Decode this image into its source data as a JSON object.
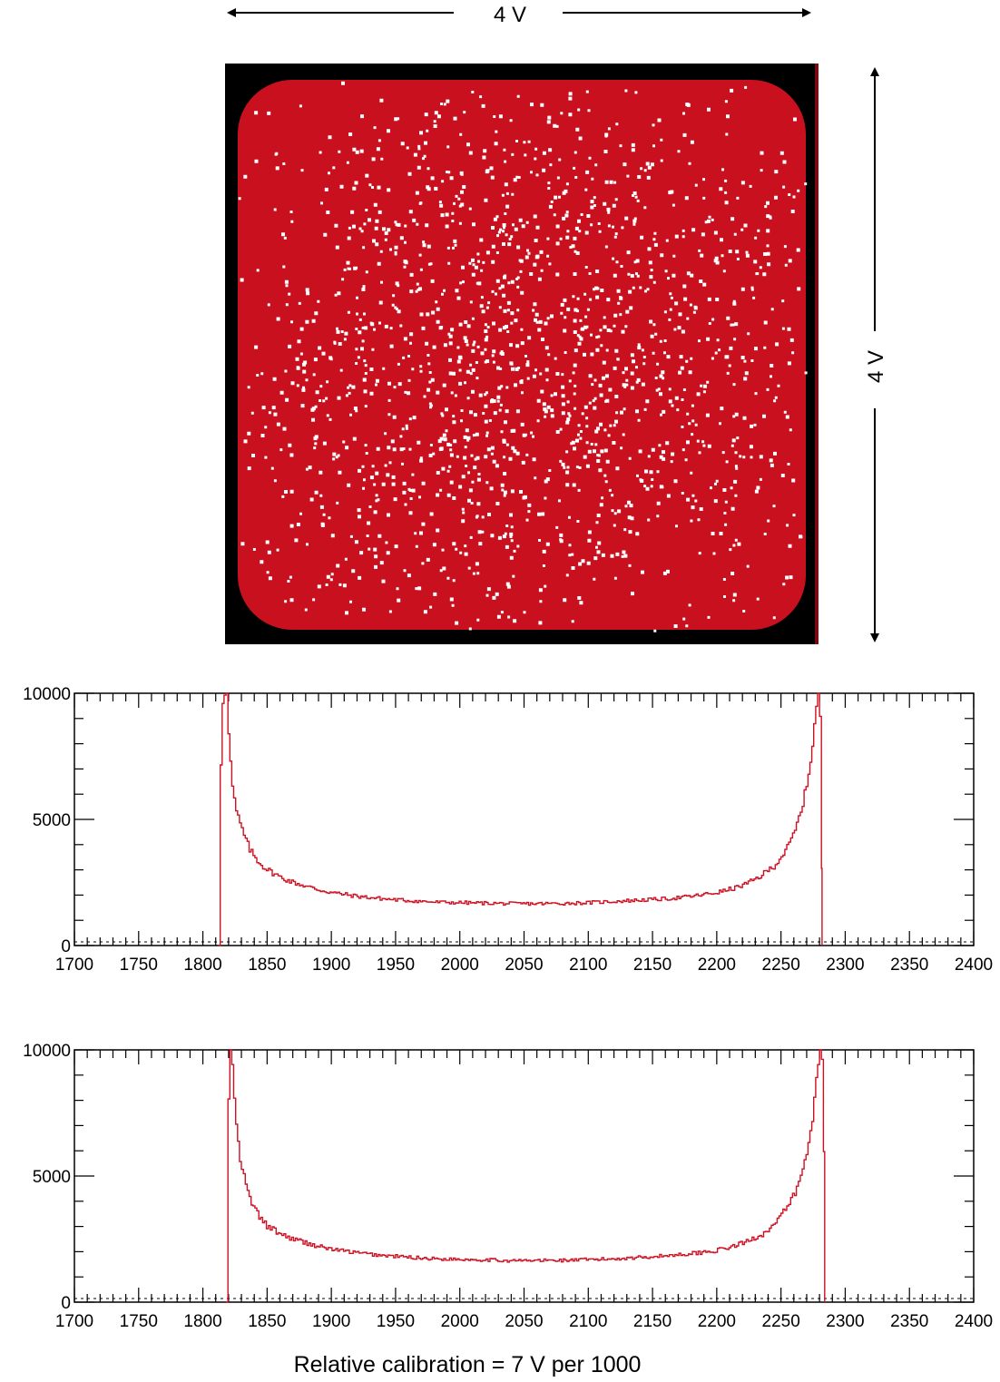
{
  "figure": {
    "horizontal_dimension_label": "4 V",
    "vertical_dimension_label": "4 V",
    "caption": "Relative calibration = 7 V per 1000"
  },
  "colors": {
    "trace": "#cc1122",
    "map_red": "#c8101e",
    "map_black": "#000000",
    "axis": "#000000"
  },
  "chart_data": [
    {
      "type": "heatmap",
      "description_colors": [
        "black",
        "red",
        "white"
      ],
      "x_extent_label": "4 V",
      "y_extent_label": "4 V"
    },
    {
      "type": "line",
      "xlim": [
        1700,
        2400
      ],
      "ylim": [
        0,
        10000
      ],
      "x_ticks": [
        1700,
        1750,
        1800,
        1850,
        1900,
        1950,
        2000,
        2050,
        2100,
        2150,
        2200,
        2250,
        2300,
        2350,
        2400
      ],
      "y_ticks": [
        0,
        5000,
        10000
      ],
      "series": [
        {
          "x": [
            1812,
            1813,
            1815,
            1817,
            1818,
            1819,
            1820,
            1822,
            1825,
            1828,
            1832,
            1836,
            1840,
            1845,
            1850,
            1855,
            1860,
            1870,
            1880,
            1890,
            1900,
            1920,
            1940,
            1960,
            1980,
            2000,
            2020,
            2040,
            2060,
            2080,
            2100,
            2120,
            2140,
            2160,
            2180,
            2200,
            2215,
            2225,
            2235,
            2245,
            2255,
            2260,
            2265,
            2270,
            2273,
            2275,
            2277,
            2278,
            2279,
            2280,
            2281,
            2282
          ],
          "y": [
            0,
            6400,
            9700,
            10000,
            10000,
            9000,
            8000,
            6500,
            5400,
            4900,
            4300,
            3800,
            3500,
            3200,
            3000,
            2850,
            2700,
            2500,
            2350,
            2200,
            2100,
            1950,
            1850,
            1780,
            1720,
            1700,
            1680,
            1660,
            1660,
            1670,
            1700,
            1750,
            1800,
            1850,
            1950,
            2100,
            2300,
            2500,
            2800,
            3200,
            3900,
            4500,
            5300,
            6500,
            7500,
            8500,
            9500,
            10000,
            10000,
            9000,
            6000,
            0
          ]
        }
      ]
    },
    {
      "type": "line",
      "xlim": [
        1700,
        2400
      ],
      "ylim": [
        0,
        10000
      ],
      "x_ticks": [
        1700,
        1750,
        1800,
        1850,
        1900,
        1950,
        2000,
        2050,
        2100,
        2150,
        2200,
        2250,
        2300,
        2350,
        2400
      ],
      "y_ticks": [
        0,
        5000,
        10000
      ],
      "series": [
        {
          "x": [
            1818,
            1819,
            1820,
            1821,
            1822,
            1823,
            1824,
            1826,
            1828,
            1831,
            1834,
            1838,
            1842,
            1846,
            1850,
            1855,
            1860,
            1870,
            1880,
            1890,
            1900,
            1920,
            1940,
            1960,
            1980,
            2000,
            2020,
            2040,
            2060,
            2080,
            2100,
            2120,
            2140,
            2160,
            2180,
            2200,
            2215,
            2225,
            2235,
            2245,
            2255,
            2262,
            2267,
            2271,
            2274,
            2276,
            2278,
            2280,
            2281,
            2282,
            2283,
            2284
          ],
          "y": [
            0,
            6400,
            9800,
            10000,
            9700,
            9000,
            8000,
            6800,
            5700,
            5100,
            4400,
            3900,
            3500,
            3200,
            3000,
            2850,
            2700,
            2500,
            2350,
            2200,
            2100,
            1950,
            1850,
            1780,
            1720,
            1700,
            1680,
            1640,
            1650,
            1660,
            1680,
            1720,
            1780,
            1840,
            1930,
            2050,
            2250,
            2450,
            2700,
            3100,
            3800,
            4500,
            5300,
            6300,
            7300,
            8300,
            9300,
            10000,
            10000,
            9200,
            6000,
            0
          ]
        }
      ]
    }
  ]
}
